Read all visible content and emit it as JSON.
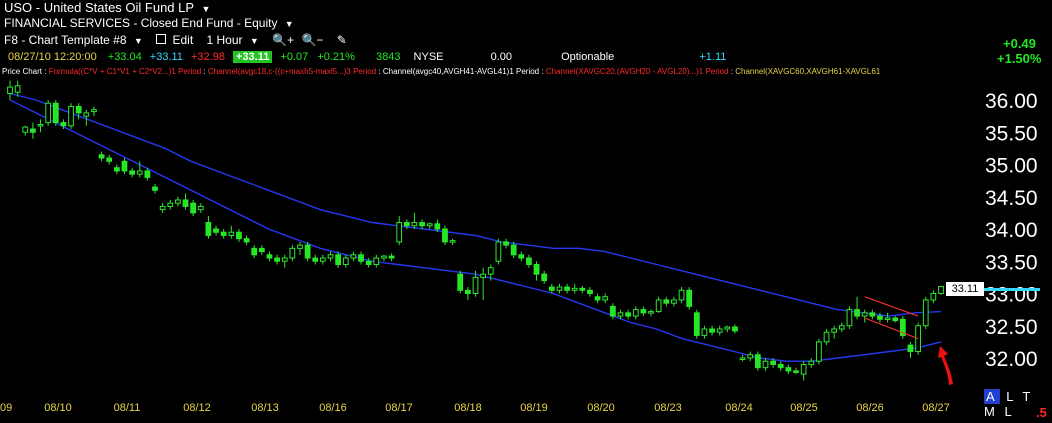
{
  "header": {
    "symbol": "USO",
    "name": "United States Oil Fund LP",
    "category": "FINANCIAL SERVICES - Closed End Fund - Equity",
    "template": "F8 - Chart Template #8",
    "edit_label": "Edit",
    "period_label": "1 Hour",
    "change_abs": "+0.49",
    "change_pct": "+1.50%"
  },
  "quote": {
    "datetime": "08/27/10 12:20:00",
    "open": "+33.04",
    "high": "+33.11",
    "low": "+32.98",
    "close": "+33.11",
    "change": "+0.07",
    "change_pct": "+0.21%",
    "volume": "3843",
    "exchange": "NYSE",
    "field1": "0.00",
    "optionable": "Optionable",
    "field2": "+1.11"
  },
  "studies": {
    "price_chart": "Price Chart",
    "formula": "Formula((C*V + C1*V1 + C2*V2...)1 Period",
    "channel1": "Channel(avgc18,c-((c+maxh5-maxl5...)3 Period",
    "channel2": "Channel(avgc40,AVGH41-AVGL41)1 Period",
    "channel3": "Channel(XAVGC20,(AVGH20 - AVGL20)...)1 Period",
    "channel4": "Channel(XAVGC60,XAVGH61-XAVGL61"
  },
  "price_tag": "33.11",
  "footer": {
    "a": "A",
    "ltml": "L T M L",
    "five": ".5"
  },
  "chart_data": {
    "type": "candlestick",
    "ylim": [
      31.6,
      36.45
    ],
    "yticks": [
      "36.00",
      "35.50",
      "35.00",
      "34.50",
      "34.00",
      "33.50",
      "33.00",
      "32.50",
      "32.00"
    ],
    "x_labels": [
      "09",
      "08/10",
      "08/11",
      "08/12",
      "08/13",
      "08/16",
      "08/17",
      "08/18",
      "08/19",
      "08/20",
      "08/23",
      "08/24",
      "08/25",
      "08/26",
      "08/27"
    ],
    "candles": [
      {
        "o": 36.1,
        "h": 36.3,
        "l": 36.0,
        "c": 36.2
      },
      {
        "o": 36.12,
        "h": 36.3,
        "l": 36.05,
        "c": 36.22
      },
      {
        "o": 35.5,
        "h": 35.6,
        "l": 35.45,
        "c": 35.58
      },
      {
        "o": 35.55,
        "h": 35.65,
        "l": 35.4,
        "c": 35.5
      },
      {
        "o": 35.6,
        "h": 35.7,
        "l": 35.5,
        "c": 35.62
      },
      {
        "o": 35.65,
        "h": 36.0,
        "l": 35.6,
        "c": 35.95
      },
      {
        "o": 35.95,
        "h": 36.0,
        "l": 35.6,
        "c": 35.65
      },
      {
        "o": 35.65,
        "h": 35.7,
        "l": 35.55,
        "c": 35.6
      },
      {
        "o": 35.6,
        "h": 35.95,
        "l": 35.55,
        "c": 35.9
      },
      {
        "o": 35.9,
        "h": 35.95,
        "l": 35.7,
        "c": 35.8
      },
      {
        "o": 35.75,
        "h": 35.85,
        "l": 35.6,
        "c": 35.8
      },
      {
        "o": 35.82,
        "h": 35.9,
        "l": 35.75,
        "c": 35.85
      },
      {
        "o": 35.15,
        "h": 35.2,
        "l": 35.05,
        "c": 35.1
      },
      {
        "o": 35.1,
        "h": 35.15,
        "l": 35.0,
        "c": 35.05
      },
      {
        "o": 34.95,
        "h": 35.0,
        "l": 34.85,
        "c": 34.9
      },
      {
        "o": 35.05,
        "h": 35.1,
        "l": 34.85,
        "c": 34.9
      },
      {
        "o": 34.9,
        "h": 34.95,
        "l": 34.8,
        "c": 34.85
      },
      {
        "o": 34.85,
        "h": 35.05,
        "l": 34.8,
        "c": 34.9
      },
      {
        "o": 34.9,
        "h": 34.95,
        "l": 34.75,
        "c": 34.8
      },
      {
        "o": 34.65,
        "h": 34.7,
        "l": 34.55,
        "c": 34.6
      },
      {
        "o": 34.3,
        "h": 34.4,
        "l": 34.25,
        "c": 34.35
      },
      {
        "o": 34.35,
        "h": 34.45,
        "l": 34.3,
        "c": 34.4
      },
      {
        "o": 34.4,
        "h": 34.5,
        "l": 34.35,
        "c": 34.45
      },
      {
        "o": 34.45,
        "h": 34.55,
        "l": 34.3,
        "c": 34.35
      },
      {
        "o": 34.4,
        "h": 34.45,
        "l": 34.2,
        "c": 34.25
      },
      {
        "o": 34.3,
        "h": 34.4,
        "l": 34.25,
        "c": 34.35
      },
      {
        "o": 34.1,
        "h": 34.2,
        "l": 33.85,
        "c": 33.9
      },
      {
        "o": 34.0,
        "h": 34.05,
        "l": 33.9,
        "c": 33.95
      },
      {
        "o": 33.95,
        "h": 34.0,
        "l": 33.85,
        "c": 33.9
      },
      {
        "o": 33.9,
        "h": 34.05,
        "l": 33.85,
        "c": 33.95
      },
      {
        "o": 33.95,
        "h": 34.0,
        "l": 33.8,
        "c": 33.85
      },
      {
        "o": 33.85,
        "h": 33.9,
        "l": 33.75,
        "c": 33.8
      },
      {
        "o": 33.7,
        "h": 33.75,
        "l": 33.55,
        "c": 33.6
      },
      {
        "o": 33.7,
        "h": 33.75,
        "l": 33.6,
        "c": 33.65
      },
      {
        "o": 33.6,
        "h": 33.65,
        "l": 33.5,
        "c": 33.55
      },
      {
        "o": 33.55,
        "h": 33.6,
        "l": 33.45,
        "c": 33.5
      },
      {
        "o": 33.5,
        "h": 33.6,
        "l": 33.4,
        "c": 33.55
      },
      {
        "o": 33.55,
        "h": 33.75,
        "l": 33.5,
        "c": 33.7
      },
      {
        "o": 33.7,
        "h": 33.8,
        "l": 33.6,
        "c": 33.75
      },
      {
        "o": 33.75,
        "h": 33.8,
        "l": 33.5,
        "c": 33.55
      },
      {
        "o": 33.55,
        "h": 33.6,
        "l": 33.45,
        "c": 33.5
      },
      {
        "o": 33.5,
        "h": 33.6,
        "l": 33.45,
        "c": 33.55
      },
      {
        "o": 33.55,
        "h": 33.65,
        "l": 33.5,
        "c": 33.6
      },
      {
        "o": 33.6,
        "h": 33.65,
        "l": 33.4,
        "c": 33.45
      },
      {
        "o": 33.45,
        "h": 33.6,
        "l": 33.4,
        "c": 33.55
      },
      {
        "o": 33.55,
        "h": 33.65,
        "l": 33.5,
        "c": 33.6
      },
      {
        "o": 33.6,
        "h": 33.65,
        "l": 33.45,
        "c": 33.5
      },
      {
        "o": 33.5,
        "h": 33.55,
        "l": 33.4,
        "c": 33.45
      },
      {
        "o": 33.45,
        "h": 33.6,
        "l": 33.4,
        "c": 33.55
      },
      {
        "o": 33.55,
        "h": 33.6,
        "l": 33.5,
        "c": 33.58
      },
      {
        "o": 33.58,
        "h": 33.62,
        "l": 33.5,
        "c": 33.55
      },
      {
        "o": 33.8,
        "h": 34.2,
        "l": 33.75,
        "c": 34.1
      },
      {
        "o": 34.1,
        "h": 34.15,
        "l": 34.0,
        "c": 34.05
      },
      {
        "o": 34.05,
        "h": 34.25,
        "l": 34.0,
        "c": 34.1
      },
      {
        "o": 34.1,
        "h": 34.15,
        "l": 34.0,
        "c": 34.05
      },
      {
        "o": 34.05,
        "h": 34.1,
        "l": 34.0,
        "c": 34.08
      },
      {
        "o": 34.08,
        "h": 34.15,
        "l": 33.95,
        "c": 34.0
      },
      {
        "o": 34.0,
        "h": 34.05,
        "l": 33.75,
        "c": 33.8
      },
      {
        "o": 33.8,
        "h": 33.85,
        "l": 33.75,
        "c": 33.82
      },
      {
        "o": 33.3,
        "h": 33.35,
        "l": 33.0,
        "c": 33.05
      },
      {
        "o": 33.05,
        "h": 33.1,
        "l": 32.9,
        "c": 33.0
      },
      {
        "o": 33.0,
        "h": 33.35,
        "l": 32.95,
        "c": 33.25
      },
      {
        "o": 33.25,
        "h": 33.4,
        "l": 32.9,
        "c": 33.3
      },
      {
        "o": 33.3,
        "h": 33.45,
        "l": 33.2,
        "c": 33.4
      },
      {
        "o": 33.5,
        "h": 33.85,
        "l": 33.45,
        "c": 33.8
      },
      {
        "o": 33.8,
        "h": 33.85,
        "l": 33.7,
        "c": 33.75
      },
      {
        "o": 33.75,
        "h": 33.8,
        "l": 33.55,
        "c": 33.6
      },
      {
        "o": 33.6,
        "h": 33.65,
        "l": 33.5,
        "c": 33.55
      },
      {
        "o": 33.55,
        "h": 33.6,
        "l": 33.4,
        "c": 33.45
      },
      {
        "o": 33.45,
        "h": 33.5,
        "l": 33.2,
        "c": 33.3
      },
      {
        "o": 33.3,
        "h": 33.35,
        "l": 33.15,
        "c": 33.2
      },
      {
        "o": 33.1,
        "h": 33.15,
        "l": 33.0,
        "c": 33.05
      },
      {
        "o": 33.05,
        "h": 33.15,
        "l": 33.0,
        "c": 33.1
      },
      {
        "o": 33.1,
        "h": 33.15,
        "l": 33.0,
        "c": 33.05
      },
      {
        "o": 33.05,
        "h": 33.15,
        "l": 33.0,
        "c": 33.08
      },
      {
        "o": 33.08,
        "h": 33.12,
        "l": 33.0,
        "c": 33.05
      },
      {
        "o": 33.05,
        "h": 33.1,
        "l": 32.95,
        "c": 33.0
      },
      {
        "o": 32.95,
        "h": 33.0,
        "l": 32.85,
        "c": 32.9
      },
      {
        "o": 32.9,
        "h": 33.0,
        "l": 32.85,
        "c": 32.95
      },
      {
        "o": 32.8,
        "h": 32.85,
        "l": 32.6,
        "c": 32.65
      },
      {
        "o": 32.65,
        "h": 32.75,
        "l": 32.6,
        "c": 32.7
      },
      {
        "o": 32.7,
        "h": 32.75,
        "l": 32.6,
        "c": 32.65
      },
      {
        "o": 32.65,
        "h": 32.8,
        "l": 32.6,
        "c": 32.75
      },
      {
        "o": 32.75,
        "h": 32.8,
        "l": 32.65,
        "c": 32.7
      },
      {
        "o": 32.7,
        "h": 32.75,
        "l": 32.65,
        "c": 32.72
      },
      {
        "o": 32.72,
        "h": 32.95,
        "l": 32.7,
        "c": 32.9
      },
      {
        "o": 32.9,
        "h": 32.95,
        "l": 32.8,
        "c": 32.85
      },
      {
        "o": 32.85,
        "h": 32.95,
        "l": 32.8,
        "c": 32.9
      },
      {
        "o": 32.9,
        "h": 33.1,
        "l": 32.85,
        "c": 33.05
      },
      {
        "o": 33.05,
        "h": 33.1,
        "l": 32.75,
        "c": 32.8
      },
      {
        "o": 32.7,
        "h": 32.75,
        "l": 32.3,
        "c": 32.35
      },
      {
        "o": 32.35,
        "h": 32.5,
        "l": 32.3,
        "c": 32.45
      },
      {
        "o": 32.45,
        "h": 32.5,
        "l": 32.35,
        "c": 32.4
      },
      {
        "o": 32.4,
        "h": 32.5,
        "l": 32.35,
        "c": 32.45
      },
      {
        "o": 32.45,
        "h": 32.5,
        "l": 32.4,
        "c": 32.48
      },
      {
        "o": 32.48,
        "h": 32.52,
        "l": 32.38,
        "c": 32.42
      },
      {
        "o": 32.0,
        "h": 32.05,
        "l": 31.95,
        "c": 32.0
      },
      {
        "o": 32.0,
        "h": 32.1,
        "l": 31.95,
        "c": 32.05
      },
      {
        "o": 32.05,
        "h": 32.1,
        "l": 31.8,
        "c": 31.85
      },
      {
        "o": 31.85,
        "h": 32.0,
        "l": 31.8,
        "c": 31.95
      },
      {
        "o": 31.95,
        "h": 32.0,
        "l": 31.85,
        "c": 31.9
      },
      {
        "o": 31.9,
        "h": 31.95,
        "l": 31.8,
        "c": 31.85
      },
      {
        "o": 31.85,
        "h": 31.9,
        "l": 31.75,
        "c": 31.8
      },
      {
        "o": 31.8,
        "h": 31.85,
        "l": 31.75,
        "c": 31.78
      },
      {
        "o": 31.75,
        "h": 31.95,
        "l": 31.65,
        "c": 31.9
      },
      {
        "o": 31.9,
        "h": 32.0,
        "l": 31.85,
        "c": 31.95
      },
      {
        "o": 31.95,
        "h": 32.3,
        "l": 31.9,
        "c": 32.25
      },
      {
        "o": 32.25,
        "h": 32.45,
        "l": 32.2,
        "c": 32.4
      },
      {
        "o": 32.4,
        "h": 32.5,
        "l": 32.3,
        "c": 32.45
      },
      {
        "o": 32.45,
        "h": 32.55,
        "l": 32.4,
        "c": 32.5
      },
      {
        "o": 32.5,
        "h": 32.8,
        "l": 32.45,
        "c": 32.75
      },
      {
        "o": 32.75,
        "h": 32.95,
        "l": 32.6,
        "c": 32.65
      },
      {
        "o": 32.65,
        "h": 32.75,
        "l": 32.55,
        "c": 32.7
      },
      {
        "o": 32.7,
        "h": 32.75,
        "l": 32.6,
        "c": 32.65
      },
      {
        "o": 32.65,
        "h": 32.7,
        "l": 32.55,
        "c": 32.6
      },
      {
        "o": 32.6,
        "h": 32.7,
        "l": 32.55,
        "c": 32.62
      },
      {
        "o": 32.62,
        "h": 32.65,
        "l": 32.55,
        "c": 32.58
      },
      {
        "o": 32.6,
        "h": 32.65,
        "l": 32.3,
        "c": 32.35
      },
      {
        "o": 32.2,
        "h": 32.25,
        "l": 32.0,
        "c": 32.1
      },
      {
        "o": 32.1,
        "h": 32.55,
        "l": 32.05,
        "c": 32.5
      },
      {
        "o": 32.5,
        "h": 32.95,
        "l": 32.45,
        "c": 32.9
      },
      {
        "o": 32.9,
        "h": 33.05,
        "l": 32.85,
        "c": 33.0
      },
      {
        "o": 33.0,
        "h": 33.11,
        "l": 32.98,
        "c": 33.11
      }
    ],
    "upper_band": [
      36.1,
      36.0,
      35.85,
      35.7,
      35.55,
      35.4,
      35.25,
      35.05,
      34.9,
      34.75,
      34.6,
      34.45,
      34.3,
      34.2,
      34.1,
      34.05,
      34.0,
      33.95,
      33.9,
      33.8,
      33.75,
      33.7,
      33.7,
      33.65,
      33.55,
      33.45,
      33.35,
      33.25,
      33.15,
      33.05,
      32.95,
      32.85,
      32.75,
      32.7,
      32.65,
      32.7,
      32.72
    ],
    "lower_band": [
      36.0,
      35.8,
      35.6,
      35.4,
      35.2,
      35.0,
      34.8,
      34.6,
      34.4,
      34.2,
      34.0,
      33.85,
      33.7,
      33.6,
      33.5,
      33.45,
      33.4,
      33.35,
      33.3,
      33.2,
      33.1,
      33.0,
      32.85,
      32.7,
      32.55,
      32.45,
      32.3,
      32.2,
      32.1,
      32.0,
      31.95,
      31.95,
      32.0,
      32.05,
      32.1,
      32.15,
      32.25
    ],
    "colors": {
      "bull": "#2ee82e",
      "bear": "#22e822",
      "band": "#2638f0",
      "trend": "#ff3333",
      "arrow": "#ee1111"
    }
  }
}
